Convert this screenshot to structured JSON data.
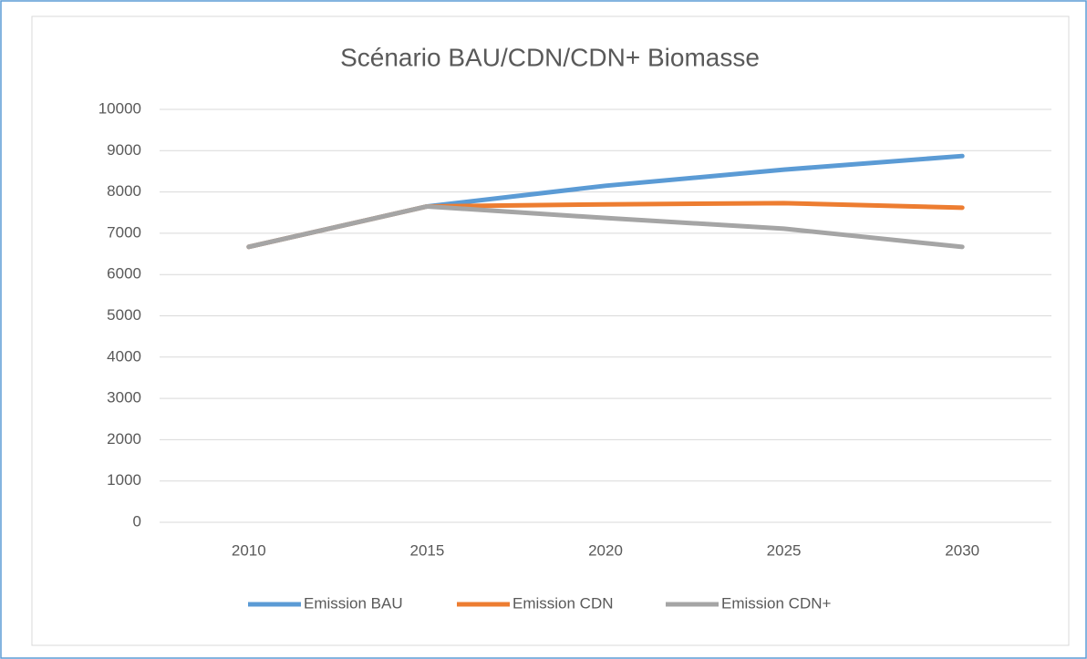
{
  "chart_data": {
    "type": "line",
    "title": "Scénario BAU/CDN/CDN+ Biomasse",
    "categories": [
      "2010",
      "2015",
      "2020",
      "2025",
      "2030"
    ],
    "series": [
      {
        "name": "Emission BAU",
        "color": "#5b9bd5",
        "values": [
          6670,
          7650,
          8150,
          8540,
          8870
        ]
      },
      {
        "name": "Emission CDN",
        "color": "#ed7d31",
        "values": [
          6670,
          7650,
          7700,
          7730,
          7620
        ]
      },
      {
        "name": "Emission CDN+",
        "color": "#a5a5a5",
        "values": [
          6670,
          7650,
          7370,
          7110,
          6670
        ]
      }
    ],
    "ylim": [
      0,
      10000
    ],
    "yticks": [
      0,
      1000,
      2000,
      3000,
      4000,
      5000,
      6000,
      7000,
      8000,
      9000,
      10000
    ],
    "grid": true,
    "legend": "bottom"
  }
}
